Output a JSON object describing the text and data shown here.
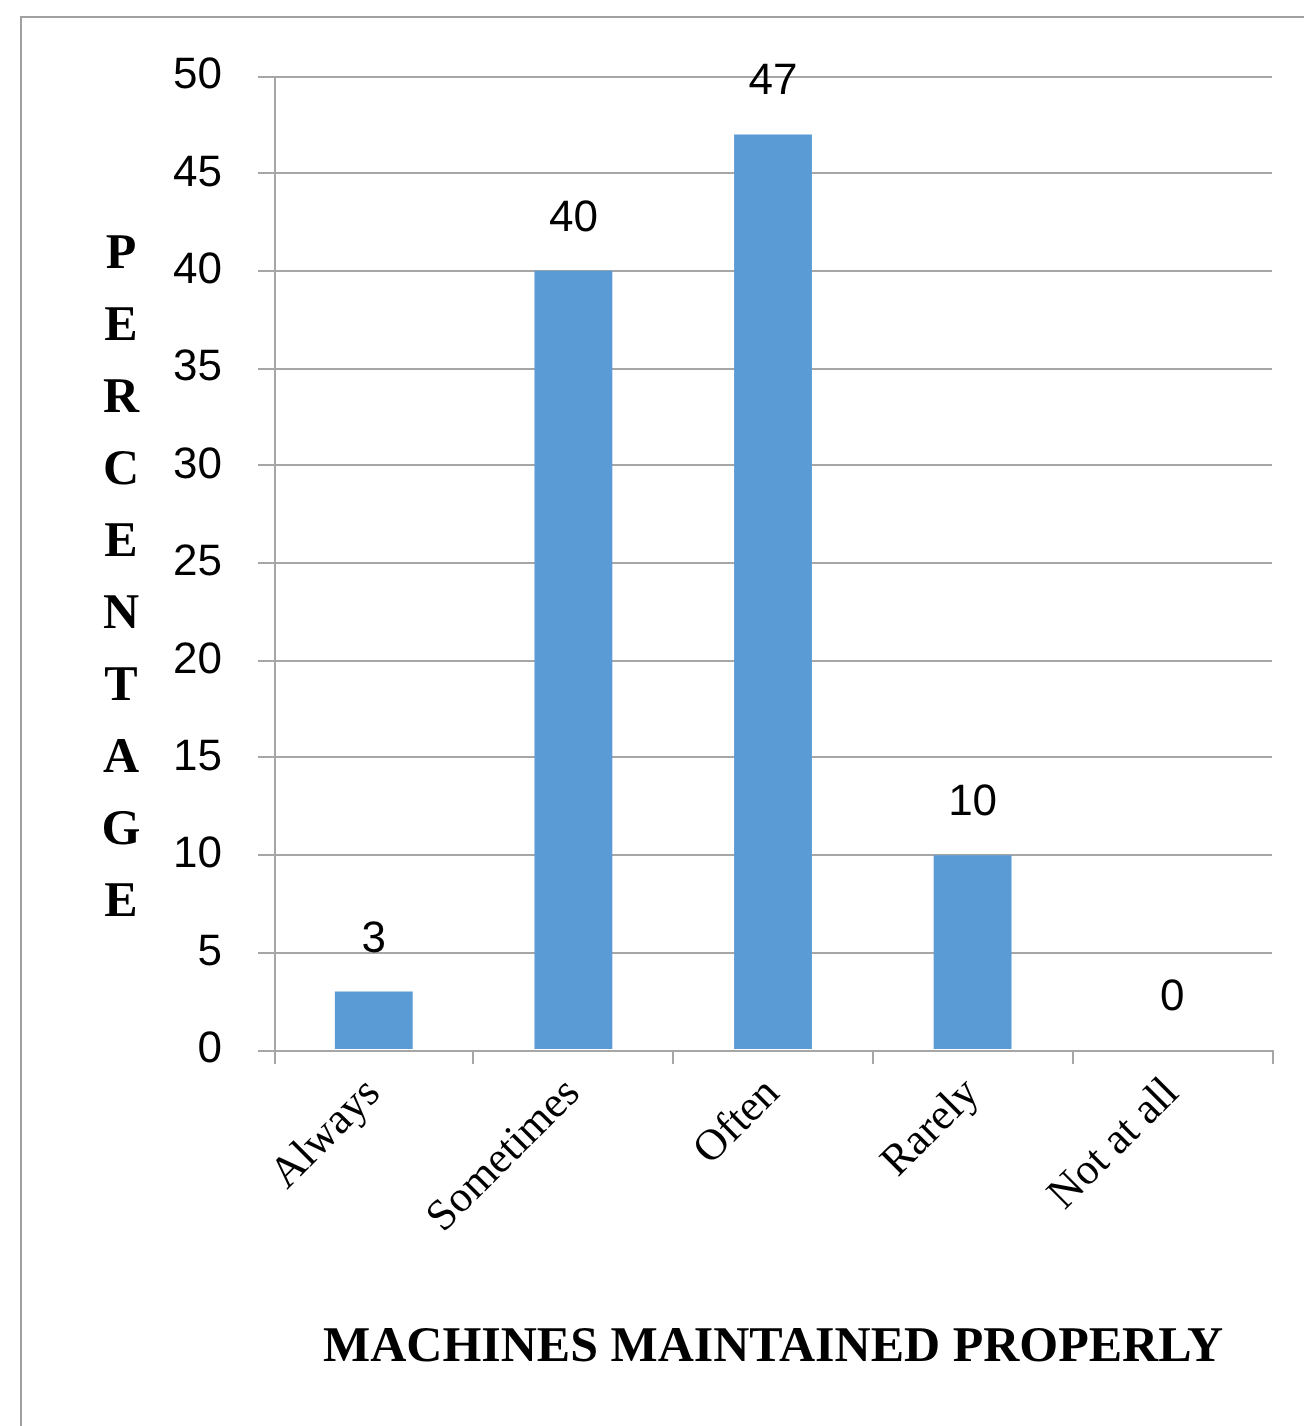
{
  "chart_data": {
    "type": "bar",
    "xlabel": "MACHINES MAINTAINED PROPERLY",
    "ylabel": "PERCENTAGE",
    "categories": [
      "Always",
      "Sometimes",
      "Often",
      "Rarely",
      "Not at all"
    ],
    "values": [
      3,
      40,
      47,
      10,
      0
    ],
    "color": "#5b9bd5",
    "ylim": [
      0,
      50
    ],
    "yticks": [
      0,
      5,
      10,
      15,
      20,
      25,
      30,
      35,
      40,
      45,
      50
    ],
    "grid": "y",
    "data_labels": true
  }
}
